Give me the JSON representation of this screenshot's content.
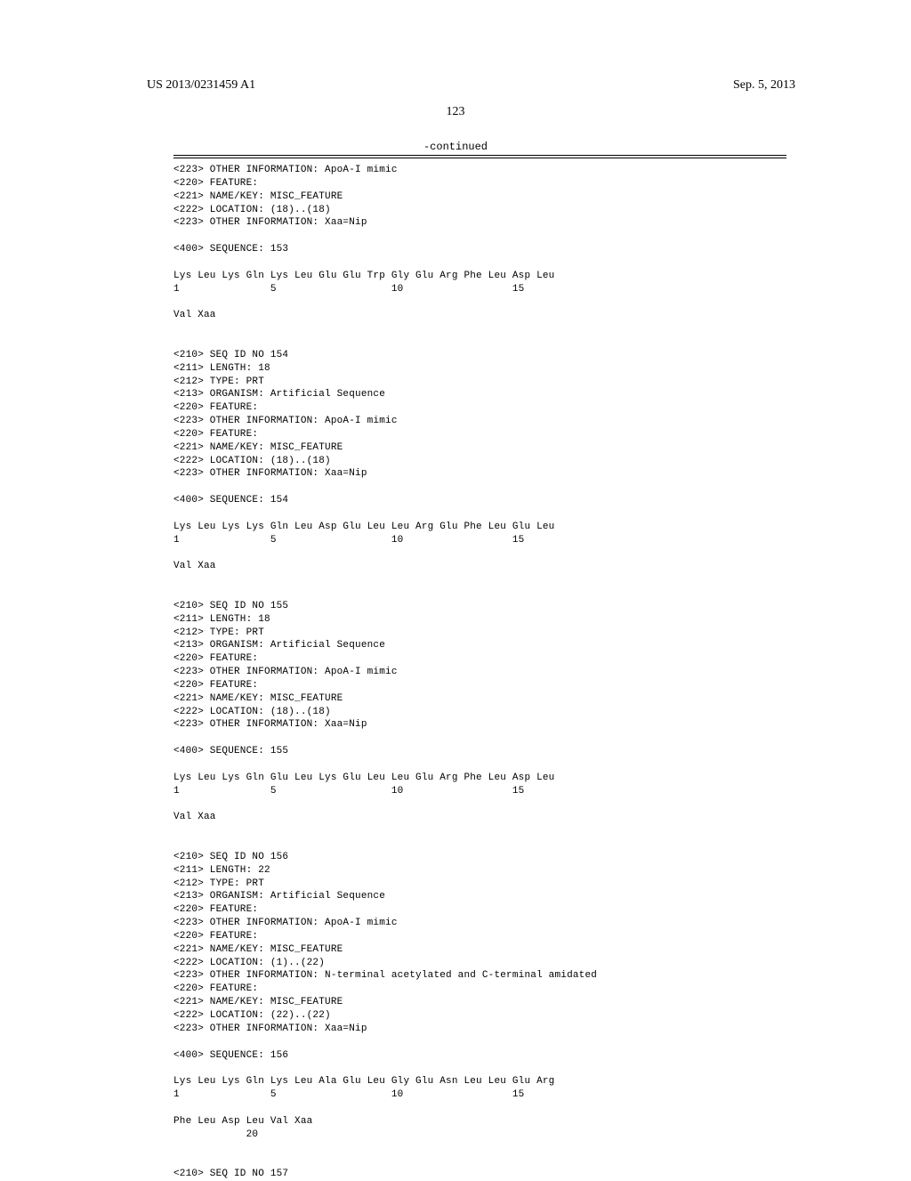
{
  "header": {
    "pub_no": "US 2013/0231459 A1",
    "date": "Sep. 5, 2013",
    "page_number": "123",
    "continued": "-continued"
  },
  "blocks": {
    "b0": "<223> OTHER INFORMATION: ApoA-I mimic\n<220> FEATURE:\n<221> NAME/KEY: MISC_FEATURE\n<222> LOCATION: (18)..(18)\n<223> OTHER INFORMATION: Xaa=Nip\n\n<400> SEQUENCE: 153\n\nLys Leu Lys Gln Lys Leu Glu Glu Trp Gly Glu Arg Phe Leu Asp Leu\n1               5                   10                  15\n\nVal Xaa\n\n\n<210> SEQ ID NO 154\n<211> LENGTH: 18\n<212> TYPE: PRT\n<213> ORGANISM: Artificial Sequence\n<220> FEATURE:\n<223> OTHER INFORMATION: ApoA-I mimic\n<220> FEATURE:\n<221> NAME/KEY: MISC_FEATURE\n<222> LOCATION: (18)..(18)\n<223> OTHER INFORMATION: Xaa=Nip\n\n<400> SEQUENCE: 154\n\nLys Leu Lys Lys Gln Leu Asp Glu Leu Leu Arg Glu Phe Leu Glu Leu\n1               5                   10                  15\n\nVal Xaa\n\n\n<210> SEQ ID NO 155\n<211> LENGTH: 18\n<212> TYPE: PRT\n<213> ORGANISM: Artificial Sequence\n<220> FEATURE:\n<223> OTHER INFORMATION: ApoA-I mimic\n<220> FEATURE:\n<221> NAME/KEY: MISC_FEATURE\n<222> LOCATION: (18)..(18)\n<223> OTHER INFORMATION: Xaa=Nip\n\n<400> SEQUENCE: 155\n\nLys Leu Lys Gln Glu Leu Lys Glu Leu Leu Glu Arg Phe Leu Asp Leu\n1               5                   10                  15\n\nVal Xaa\n\n\n<210> SEQ ID NO 156\n<211> LENGTH: 22\n<212> TYPE: PRT\n<213> ORGANISM: Artificial Sequence\n<220> FEATURE:\n<223> OTHER INFORMATION: ApoA-I mimic\n<220> FEATURE:\n<221> NAME/KEY: MISC_FEATURE\n<222> LOCATION: (1)..(22)\n<223> OTHER INFORMATION: N-terminal acetylated and C-terminal amidated\n<220> FEATURE:\n<221> NAME/KEY: MISC_FEATURE\n<222> LOCATION: (22)..(22)\n<223> OTHER INFORMATION: Xaa=Nip\n\n<400> SEQUENCE: 156\n\nLys Leu Lys Gln Lys Leu Ala Glu Leu Gly Glu Asn Leu Leu Glu Arg\n1               5                   10                  15\n\nPhe Leu Asp Leu Val Xaa\n            20\n\n\n<210> SEQ ID NO 157"
  }
}
